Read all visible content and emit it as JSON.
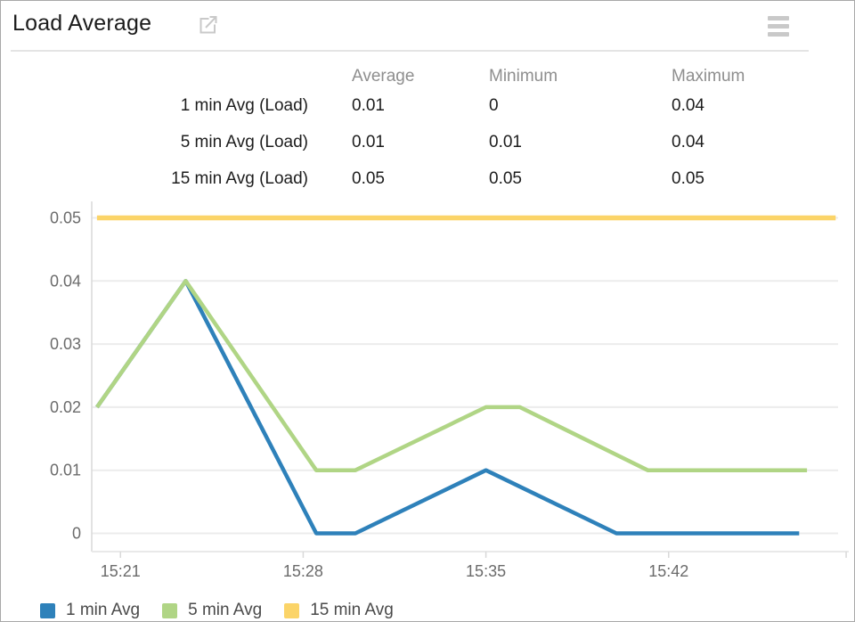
{
  "header": {
    "title": "Load Average",
    "open_icon": "external-link-icon",
    "menu_icon": "hamburger-menu-icon"
  },
  "stats_table": {
    "columns": [
      "Average",
      "Minimum",
      "Maximum"
    ],
    "rows": [
      {
        "label": "1 min Avg (Load)",
        "average": "0.01",
        "minimum": "0",
        "maximum": "0.04"
      },
      {
        "label": "5 min Avg (Load)",
        "average": "0.01",
        "minimum": "0.01",
        "maximum": "0.04"
      },
      {
        "label": "15 min Avg (Load)",
        "average": "0.05",
        "minimum": "0.05",
        "maximum": "0.05"
      }
    ]
  },
  "chart_data": {
    "type": "line",
    "title": "Load Average",
    "xlabel": "",
    "ylabel": "",
    "ylim": [
      0,
      0.05
    ],
    "xlim_minutes_after_1500": [
      19.9,
      48.9
    ],
    "grid": "horizontal",
    "legend_position": "bottom-left",
    "x_ticks": [
      {
        "t": 21,
        "label": "15:21"
      },
      {
        "t": 28,
        "label": "15:28"
      },
      {
        "t": 35,
        "label": "15:35"
      },
      {
        "t": 42,
        "label": "15:42"
      },
      {
        "t": 48.8,
        "label": ""
      }
    ],
    "y_ticks": [
      {
        "v": 0,
        "label": "0"
      },
      {
        "v": 0.01,
        "label": "0.01"
      },
      {
        "v": 0.02,
        "label": "0.02"
      },
      {
        "v": 0.03,
        "label": "0.03"
      },
      {
        "v": 0.04,
        "label": "0.04"
      },
      {
        "v": 0.05,
        "label": "0.05"
      }
    ],
    "series": [
      {
        "name": "1 min Avg",
        "color": "#2e81ba",
        "width": 4.5,
        "points_t_v": [
          [
            20.1,
            0.02
          ],
          [
            23.5,
            0.04
          ],
          [
            28.5,
            0
          ],
          [
            30.0,
            0
          ],
          [
            35.0,
            0.01
          ],
          [
            40.0,
            0
          ],
          [
            47.0,
            0
          ]
        ]
      },
      {
        "name": "5 min Avg",
        "color": "#b0d585",
        "width": 4.5,
        "points_t_v": [
          [
            20.1,
            0.02
          ],
          [
            23.5,
            0.04
          ],
          [
            28.5,
            0.01
          ],
          [
            30.0,
            0.01
          ],
          [
            35.0,
            0.02
          ],
          [
            36.3,
            0.02
          ],
          [
            41.2,
            0.01
          ],
          [
            47.3,
            0.01
          ]
        ]
      },
      {
        "name": "15 min Avg",
        "color": "#fbd468",
        "width": 5.5,
        "points_t_v": [
          [
            20.1,
            0.05
          ],
          [
            48.4,
            0.05
          ]
        ]
      }
    ]
  },
  "legend": {
    "items": [
      {
        "label": "1 min Avg",
        "color": "#2e81ba"
      },
      {
        "label": "5 min Avg",
        "color": "#b0d585"
      },
      {
        "label": "15 min Avg",
        "color": "#fbd468"
      }
    ]
  },
  "colors": {
    "grid": "#ececec",
    "y_axis_line": "#d9d9d9",
    "x_axis_line": "#e9e9e9",
    "tick": "#d9d9d9",
    "tick_label": "#6b6b6b",
    "table_header": "#8e8e8e",
    "title_text": "#1c1c1c",
    "icon_gray": "#c9c9c9"
  }
}
